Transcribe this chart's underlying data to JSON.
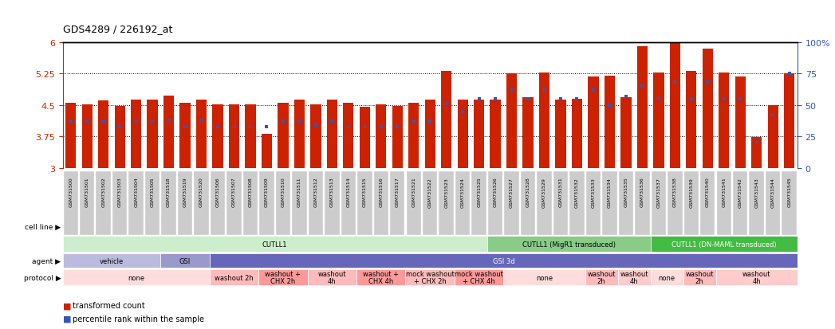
{
  "title": "GDS4289 / 226192_at",
  "samples": [
    "GSM731500",
    "GSM731501",
    "GSM731502",
    "GSM731503",
    "GSM731504",
    "GSM731505",
    "GSM731518",
    "GSM731519",
    "GSM731520",
    "GSM731506",
    "GSM731507",
    "GSM731508",
    "GSM731509",
    "GSM731510",
    "GSM731511",
    "GSM731512",
    "GSM731513",
    "GSM731514",
    "GSM731515",
    "GSM731516",
    "GSM731517",
    "GSM731521",
    "GSM731522",
    "GSM731523",
    "GSM731524",
    "GSM731525",
    "GSM731526",
    "GSM731527",
    "GSM731528",
    "GSM731529",
    "GSM731531",
    "GSM731532",
    "GSM731533",
    "GSM731534",
    "GSM731535",
    "GSM731536",
    "GSM731537",
    "GSM731538",
    "GSM731539",
    "GSM731540",
    "GSM731541",
    "GSM731542",
    "GSM731543",
    "GSM731544",
    "GSM731545"
  ],
  "bar_heights": [
    4.55,
    4.52,
    4.61,
    4.48,
    4.62,
    4.62,
    4.73,
    4.55,
    4.63,
    4.52,
    4.52,
    4.52,
    3.82,
    4.56,
    4.62,
    4.52,
    4.62,
    4.55,
    4.45,
    4.52,
    4.48,
    4.55,
    4.62,
    5.32,
    4.62,
    4.62,
    4.62,
    5.25,
    4.68,
    5.27,
    4.63,
    4.65,
    5.18,
    5.2,
    4.68,
    5.9,
    5.28,
    5.98,
    5.32,
    5.85,
    5.28,
    5.18,
    3.73,
    4.5,
    5.25
  ],
  "percentile_ranks": [
    37,
    37,
    37,
    33,
    37,
    37,
    38,
    33,
    38,
    33,
    33,
    33,
    33,
    37,
    37,
    34,
    37,
    33,
    33,
    33,
    33,
    37,
    37,
    51,
    45,
    55,
    55,
    62,
    55,
    62,
    55,
    55,
    62,
    50,
    57,
    65,
    55,
    68,
    55,
    68,
    55,
    55,
    20,
    42,
    75
  ],
  "y_min": 3.0,
  "y_max": 6.0,
  "dotted_lines": [
    3.75,
    4.5,
    5.25
  ],
  "bar_color": "#cc2200",
  "dot_color": "#3355bb",
  "cell_line_groups": [
    {
      "label": "CUTLL1",
      "start": 0,
      "end": 26,
      "color": "#cceecc"
    },
    {
      "label": "CUTLL1 (MigR1 transduced)",
      "start": 26,
      "end": 36,
      "color": "#88cc88"
    },
    {
      "label": "CUTLL1 (DN-MAML transduced)",
      "start": 36,
      "end": 45,
      "color": "#44bb44"
    }
  ],
  "agent_groups": [
    {
      "label": "vehicle",
      "start": 0,
      "end": 6,
      "color": "#bbbbdd"
    },
    {
      "label": "GSI",
      "start": 6,
      "end": 9,
      "color": "#9999cc"
    },
    {
      "label": "GSI 3d",
      "start": 9,
      "end": 45,
      "color": "#6666bb"
    }
  ],
  "protocol_groups": [
    {
      "label": "none",
      "start": 0,
      "end": 9,
      "color": "#ffdddd"
    },
    {
      "label": "washout 2h",
      "start": 9,
      "end": 12,
      "color": "#ffbbbb"
    },
    {
      "label": "washout +\nCHX 2h",
      "start": 12,
      "end": 15,
      "color": "#ff9999"
    },
    {
      "label": "washout\n4h",
      "start": 15,
      "end": 18,
      "color": "#ffbbbb"
    },
    {
      "label": "washout +\nCHX 4h",
      "start": 18,
      "end": 21,
      "color": "#ff9999"
    },
    {
      "label": "mock washout\n+ CHX 2h",
      "start": 21,
      "end": 24,
      "color": "#ffbbbb"
    },
    {
      "label": "mock washout\n+ CHX 4h",
      "start": 24,
      "end": 27,
      "color": "#ff9999"
    },
    {
      "label": "none",
      "start": 27,
      "end": 32,
      "color": "#ffdddd"
    },
    {
      "label": "washout\n2h",
      "start": 32,
      "end": 34,
      "color": "#ffbbbb"
    },
    {
      "label": "washout\n4h",
      "start": 34,
      "end": 36,
      "color": "#ffcccc"
    },
    {
      "label": "none",
      "start": 36,
      "end": 38,
      "color": "#ffdddd"
    },
    {
      "label": "washout\n2h",
      "start": 38,
      "end": 40,
      "color": "#ffbbbb"
    },
    {
      "label": "washout\n4h",
      "start": 40,
      "end": 45,
      "color": "#ffcccc"
    }
  ],
  "bg_color": "#ffffff",
  "ticklabel_bg": "#cccccc"
}
